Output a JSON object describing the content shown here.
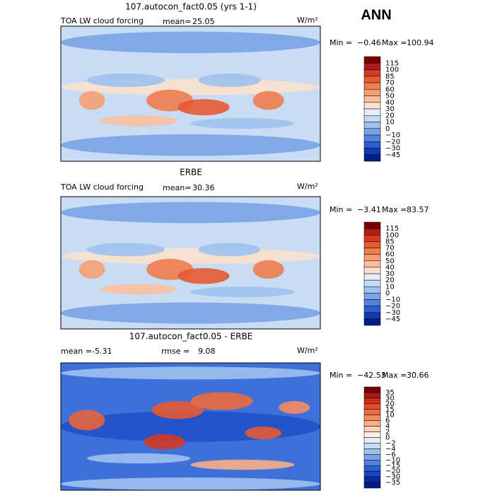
{
  "title": "ANN",
  "panels": [
    {
      "title": "107.autocon_fact0.05 (yrs 1-1)",
      "field": "TOA LW cloud forcing",
      "mean_label": "mean=",
      "mean": "25.05",
      "units": "W/m²",
      "min_label": "Min =",
      "min": "−0.46",
      "max_label": "Max =",
      "max": "100.94",
      "colorbar": {
        "labels": [
          "115",
          "100",
          "85",
          "70",
          "60",
          "50",
          "40",
          "30",
          "20",
          "10",
          "0",
          "−10",
          "−20",
          "−30",
          "−45"
        ],
        "colors": [
          "#7a0000",
          "#b01c1c",
          "#d23a24",
          "#e65a32",
          "#f07c4c",
          "#f59e74",
          "#f9c0a0",
          "#fbe0cc",
          "#e4eefa",
          "#c4dbf4",
          "#9fc1ee",
          "#7aa3e6",
          "#5182dc",
          "#2b5fd0",
          "#1238b4",
          "#041c82"
        ]
      }
    },
    {
      "title": "ERBE",
      "field": "TOA LW cloud forcing",
      "mean_label": "mean=",
      "mean": "30.36",
      "units": "W/m²",
      "min_label": "Min =",
      "min": "−3.41",
      "max_label": "Max =",
      "max": "83.57",
      "colorbar": {
        "labels": [
          "115",
          "100",
          "85",
          "70",
          "60",
          "50",
          "40",
          "30",
          "20",
          "10",
          "0",
          "−10",
          "−20",
          "−30",
          "−45"
        ],
        "colors": [
          "#7a0000",
          "#b01c1c",
          "#d23a24",
          "#e65a32",
          "#f07c4c",
          "#f59e74",
          "#f9c0a0",
          "#fbe0cc",
          "#e4eefa",
          "#c4dbf4",
          "#9fc1ee",
          "#7aa3e6",
          "#5182dc",
          "#2b5fd0",
          "#1238b4",
          "#041c82"
        ]
      }
    },
    {
      "title": "107.autocon_fact0.05 - ERBE",
      "mean_label": "mean =",
      "mean": "-5.31",
      "rmse_label": "rmse =",
      "rmse": "9.08",
      "units": "W/m²",
      "min_label": "Min =",
      "min": "−42.53",
      "max_label": "Max =",
      "max": "30.66",
      "colorbar": {
        "labels": [
          "35",
          "30",
          "20",
          "15",
          "10",
          "6",
          "4",
          "2",
          "0",
          "−2",
          "−4",
          "−6",
          "−10",
          "−15",
          "−20",
          "−30",
          "−35"
        ],
        "colors": [
          "#7a0000",
          "#a81818",
          "#c83020",
          "#e04c2c",
          "#ec6a40",
          "#f28c60",
          "#f7ae88",
          "#fbd2b8",
          "#fdeee4",
          "#e4eefa",
          "#c4dbf4",
          "#9fc1ee",
          "#7aa3e6",
          "#5182dc",
          "#2b5fd0",
          "#1a44c0",
          "#0c2aa0",
          "#041c82"
        ]
      }
    }
  ]
}
